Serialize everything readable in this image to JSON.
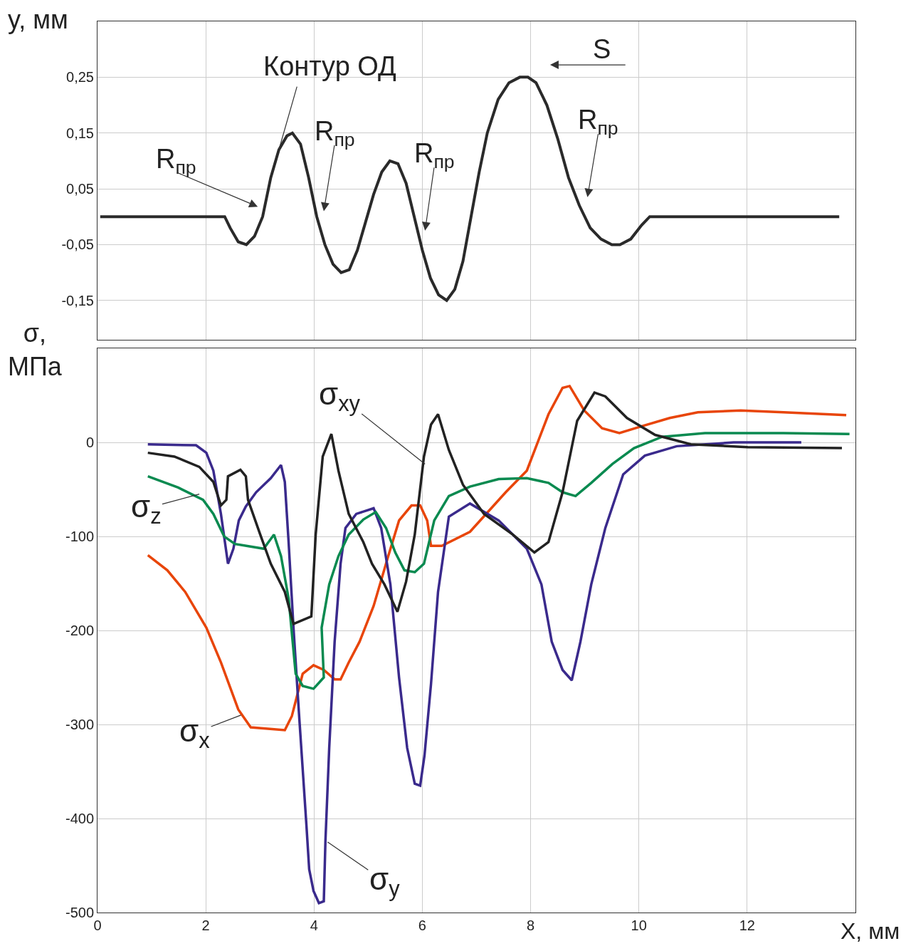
{
  "chart_data": [
    {
      "type": "line",
      "ylabel": "y, мм",
      "xlim": [
        0,
        14
      ],
      "ylim": [
        -0.22,
        0.35
      ],
      "xticks": [
        0,
        2,
        4,
        6,
        8,
        10,
        12
      ],
      "yticks": [
        {
          "value": 0.25,
          "label": "0,25"
        },
        {
          "value": 0.15,
          "label": "0,15"
        },
        {
          "value": 0.05,
          "label": "0,05"
        },
        {
          "value": -0.05,
          "label": "-0,05"
        },
        {
          "value": -0.15,
          "label": "-0,15"
        }
      ],
      "tick_labels": "y",
      "grid": true,
      "marker": "none",
      "line_style": "solid",
      "series": [
        {
          "color": "#2a2a2a",
          "x": [
            0.05,
            2.35,
            2.45,
            2.6,
            2.75,
            2.9,
            3.05,
            3.2,
            3.35,
            3.5,
            3.6,
            3.75,
            3.9,
            4.05,
            4.2,
            4.35,
            4.5,
            4.65,
            4.8,
            4.95,
            5.1,
            5.25,
            5.4,
            5.55,
            5.7,
            5.85,
            6.0,
            6.15,
            6.3,
            6.45,
            6.6,
            6.75,
            6.9,
            7.05,
            7.2,
            7.4,
            7.6,
            7.8,
            7.95,
            8.1,
            8.3,
            8.5,
            8.7,
            8.9,
            9.1,
            9.3,
            9.5,
            9.65,
            9.85,
            10.05,
            10.2,
            13.7
          ],
          "values": [
            0,
            0,
            -0.02,
            -0.045,
            -0.05,
            -0.035,
            0.0,
            0.07,
            0.12,
            0.145,
            0.15,
            0.13,
            0.07,
            0.0,
            -0.05,
            -0.085,
            -0.1,
            -0.095,
            -0.06,
            -0.01,
            0.04,
            0.08,
            0.1,
            0.095,
            0.06,
            0.0,
            -0.06,
            -0.11,
            -0.14,
            -0.15,
            -0.13,
            -0.08,
            0.0,
            0.08,
            0.15,
            0.21,
            0.24,
            0.25,
            0.25,
            0.24,
            0.2,
            0.14,
            0.07,
            0.02,
            -0.02,
            -0.04,
            -0.05,
            -0.05,
            -0.04,
            -0.015,
            0,
            0
          ]
        }
      ],
      "annotations": [
        {
          "text": "Контур ОД",
          "x": 3.35,
          "y": 0.12
        },
        "R$_{пр}$",
        "R$_{пр}$",
        "R$_{пр}$",
        "R$_{пр}$",
        "S"
      ]
    },
    {
      "type": "line",
      "ylabel": "σ,\nМПа",
      "xlabel": "X, мм",
      "xlim": [
        0,
        14
      ],
      "ylim": [
        -500,
        100
      ],
      "xticks": [
        0,
        2,
        4,
        6,
        8,
        10,
        12
      ],
      "yticks": [
        0,
        -100,
        -200,
        -300,
        -400,
        -500
      ],
      "grid": true,
      "marker": "none",
      "line_style": "solid",
      "series": [
        {
          "color": "#e8450a",
          "x": [
            0.93,
            1.29,
            1.62,
            2.01,
            2.28,
            2.6,
            2.83,
            3.46,
            3.59,
            3.79,
            3.99,
            4.18,
            4.38,
            4.49,
            4.64,
            4.84,
            5.1,
            5.37,
            5.57,
            5.8,
            5.96,
            6.09,
            6.16,
            6.36,
            6.88,
            7.54,
            7.93,
            8.33,
            8.59,
            8.72,
            8.99,
            9.32,
            9.64,
            10.04,
            10.57,
            11.09,
            11.88,
            12.67,
            13.83
          ],
          "values": [
            -120,
            -136,
            -159,
            -197,
            -234,
            -284,
            -303,
            -306,
            -291,
            -246,
            -237,
            -242,
            -252,
            -252,
            -234,
            -212,
            -174,
            -121,
            -83,
            -67,
            -67,
            -83,
            -110,
            -110,
            -95,
            -53,
            -30,
            30,
            58,
            60,
            34,
            15,
            10,
            17,
            26,
            32,
            34,
            32,
            29
          ]
        },
        {
          "color": "#3a2a8c",
          "x": [
            0.93,
            1.82,
            2.01,
            2.14,
            2.28,
            2.41,
            2.51,
            2.61,
            2.74,
            2.93,
            3.2,
            3.39,
            3.46,
            3.53,
            3.62,
            3.72,
            3.86,
            3.91,
            3.99,
            4.09,
            4.18,
            4.21,
            4.28,
            4.38,
            4.49,
            4.58,
            4.78,
            5.1,
            5.24,
            5.41,
            5.57,
            5.72,
            5.86,
            5.96,
            6.04,
            6.16,
            6.29,
            6.49,
            6.88,
            7.41,
            7.93,
            8.2,
            8.39,
            8.59,
            8.76,
            8.92,
            9.12,
            9.38,
            9.71,
            10.11,
            10.7,
            11.75,
            13.0
          ],
          "values": [
            -2,
            -3,
            -11,
            -30,
            -76,
            -129,
            -113,
            -83,
            -68,
            -53,
            -38,
            -24,
            -42,
            -106,
            -197,
            -287,
            -408,
            -454,
            -477,
            -490,
            -488,
            -424,
            -325,
            -212,
            -129,
            -91,
            -76,
            -70,
            -91,
            -151,
            -250,
            -325,
            -363,
            -365,
            -333,
            -257,
            -159,
            -79,
            -65,
            -83,
            -113,
            -151,
            -212,
            -242,
            -253,
            -212,
            -151,
            -91,
            -34,
            -14,
            -4,
            0,
            0
          ]
        },
        {
          "color": "#0a8a50",
          "x": [
            0.93,
            1.49,
            1.95,
            2.14,
            2.34,
            2.54,
            3.07,
            3.26,
            3.39,
            3.53,
            3.66,
            3.79,
            3.99,
            4.18,
            4.14,
            4.28,
            4.45,
            4.64,
            4.91,
            5.14,
            5.33,
            5.5,
            5.67,
            5.86,
            6.03,
            6.22,
            6.49,
            6.88,
            7.41,
            7.93,
            8.33,
            8.59,
            8.83,
            9.12,
            9.51,
            9.91,
            10.43,
            11.22,
            12.67,
            13.89
          ],
          "values": [
            -36,
            -48,
            -61,
            -76,
            -100,
            -108,
            -113,
            -98,
            -121,
            -166,
            -246,
            -259,
            -262,
            -250,
            -197,
            -151,
            -121,
            -98,
            -82,
            -74,
            -91,
            -117,
            -136,
            -138,
            -129,
            -83,
            -57,
            -47,
            -39,
            -38,
            -43,
            -53,
            -57,
            -43,
            -23,
            -6,
            6,
            10,
            10,
            9
          ]
        },
        {
          "color": "#222222",
          "x": [
            0.93,
            1.42,
            1.88,
            2.14,
            2.28,
            2.38,
            2.41,
            2.64,
            2.74,
            2.78,
            3.0,
            3.2,
            3.46,
            3.62,
            3.95,
            4.03,
            4.16,
            4.32,
            4.45,
            4.64,
            4.91,
            5.07,
            5.3,
            5.54,
            5.7,
            5.86,
            6.03,
            6.16,
            6.29,
            6.49,
            6.75,
            7.14,
            7.67,
            8.07,
            8.33,
            8.59,
            8.86,
            9.18,
            9.38,
            9.78,
            10.3,
            10.96,
            12.01,
            13.75
          ],
          "values": [
            -11,
            -15,
            -26,
            -42,
            -67,
            -61,
            -36,
            -29,
            -36,
            -61,
            -97,
            -129,
            -159,
            -193,
            -185,
            -98,
            -15,
            9,
            -30,
            -76,
            -106,
            -129,
            -151,
            -180,
            -148,
            -98,
            -15,
            19,
            30,
            -8,
            -45,
            -76,
            -98,
            -117,
            -106,
            -53,
            23,
            53,
            49,
            26,
            8,
            -2,
            -5,
            -6
          ]
        }
      ],
      "annotations": [
        {
          "text": "σ$_{xy}$",
          "x": 6.05,
          "y": -23
        },
        {
          "text": "σ$_{z}$",
          "x": 1.88,
          "y": -55
        },
        {
          "text": "σ$_{x}$",
          "x": 2.65,
          "y": -290
        },
        {
          "text": "σ$_{y}$",
          "x": 4.25,
          "y": -425
        }
      ]
    }
  ]
}
